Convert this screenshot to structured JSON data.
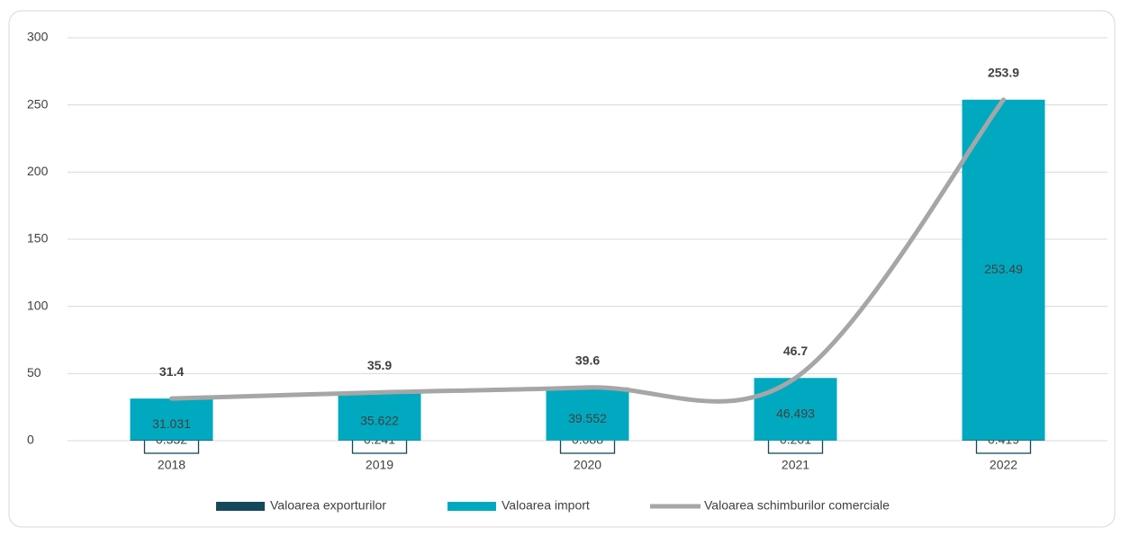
{
  "chart_data": {
    "type": "bar",
    "stacked": true,
    "categories": [
      "2018",
      "2019",
      "2020",
      "2021",
      "2022"
    ],
    "series": [
      {
        "name": "Valoarea exporturilor",
        "color": "#17475a",
        "values": [
          0.332,
          0.241,
          0.088,
          0.201,
          0.419
        ]
      },
      {
        "name": "Valoarea import",
        "color": "#00a9bf",
        "values": [
          31.031,
          35.622,
          39.552,
          46.493,
          253.49
        ]
      },
      {
        "name": "Valoarea schimburilor comerciale",
        "type": "line",
        "smooth": true,
        "color": "#a6a6a6",
        "values": [
          31.4,
          35.9,
          39.6,
          46.7,
          253.9
        ]
      }
    ],
    "ylim": [
      0,
      300
    ],
    "yticks": [
      0,
      50,
      100,
      150,
      200,
      250,
      300
    ],
    "grid": true,
    "legend": "bottom"
  }
}
